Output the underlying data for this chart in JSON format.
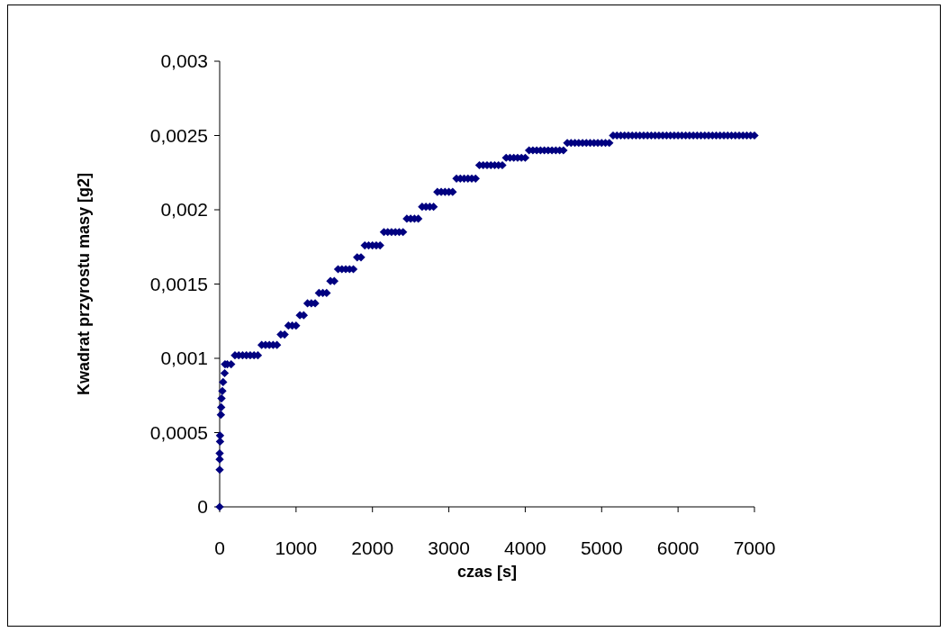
{
  "chart_data": {
    "type": "scatter",
    "xlabel": "czas [s]",
    "ylabel": "Kwadrat przyrostu masy [g2]",
    "marker": "diamond",
    "grid": false,
    "xlim": [
      0,
      7000
    ],
    "xticks": [
      0,
      1000,
      2000,
      3000,
      4000,
      5000,
      6000,
      7000
    ],
    "ylim": [
      0,
      0.003
    ],
    "yticks": [
      {
        "value": 0,
        "label": "0"
      },
      {
        "value": 0.0005,
        "label": "0,0005"
      },
      {
        "value": 0.001,
        "label": "0,001"
      },
      {
        "value": 0.0015,
        "label": "0,0015"
      },
      {
        "value": 0.002,
        "label": "0,002"
      },
      {
        "value": 0.0025,
        "label": "0,0025"
      },
      {
        "value": 0.003,
        "label": "0,003"
      }
    ],
    "series": [
      {
        "color": "#000080",
        "x": [
          0,
          0,
          0,
          0,
          5,
          5,
          16,
          20,
          24,
          35,
          45,
          65,
          70,
          100,
          150,
          200,
          250,
          300,
          350,
          400,
          450,
          500,
          550,
          600,
          650,
          700,
          750,
          800,
          850,
          900,
          950,
          1000,
          1050,
          1100,
          1150,
          1200,
          1250,
          1300,
          1350,
          1400,
          1450,
          1500,
          1550,
          1600,
          1650,
          1700,
          1750,
          1800,
          1850,
          1900,
          1950,
          2000,
          2050,
          2100,
          2150,
          2200,
          2250,
          2300,
          2350,
          2400,
          2450,
          2500,
          2550,
          2600,
          2650,
          2700,
          2750,
          2800,
          2850,
          2900,
          2950,
          3000,
          3050,
          3100,
          3150,
          3200,
          3250,
          3300,
          3350,
          3400,
          3450,
          3500,
          3550,
          3600,
          3650,
          3700,
          3750,
          3800,
          3850,
          3900,
          3950,
          4000,
          4050,
          4100,
          4150,
          4200,
          4250,
          4300,
          4350,
          4400,
          4450,
          4500,
          4550,
          4600,
          4650,
          4700,
          4750,
          4800,
          4850,
          4900,
          4950,
          5000,
          5050,
          5100,
          5150,
          5200,
          5250,
          5300,
          5350,
          5400,
          5450,
          5500,
          5550,
          5600,
          5650,
          5700,
          5750,
          5800,
          5850,
          5900,
          5950,
          6000,
          6050,
          6100,
          6150,
          6200,
          6250,
          6300,
          6350,
          6400,
          6450,
          6500,
          6550,
          6600,
          6650,
          6700,
          6750,
          6800,
          6850,
          6900,
          6950,
          7000
        ],
        "values": [
          0,
          0.00025,
          0.00032,
          0.00036,
          0.00044,
          0.00048,
          0.00062,
          0.00067,
          0.00073,
          0.00078,
          0.00084,
          0.0009,
          0.00096,
          0.00096,
          0.00096,
          0.00102,
          0.00102,
          0.00102,
          0.00102,
          0.00102,
          0.00102,
          0.00102,
          0.00109,
          0.00109,
          0.00109,
          0.00109,
          0.00109,
          0.00116,
          0.00116,
          0.00122,
          0.00122,
          0.00122,
          0.00129,
          0.00129,
          0.00137,
          0.00137,
          0.00137,
          0.00144,
          0.00144,
          0.00144,
          0.00152,
          0.00152,
          0.0016,
          0.0016,
          0.0016,
          0.0016,
          0.0016,
          0.00168,
          0.00168,
          0.00176,
          0.00176,
          0.00176,
          0.00176,
          0.00176,
          0.00185,
          0.00185,
          0.00185,
          0.00185,
          0.00185,
          0.00185,
          0.00194,
          0.00194,
          0.00194,
          0.00194,
          0.00202,
          0.00202,
          0.00202,
          0.00202,
          0.00212,
          0.00212,
          0.00212,
          0.00212,
          0.00212,
          0.00221,
          0.00221,
          0.00221,
          0.00221,
          0.00221,
          0.00221,
          0.0023,
          0.0023,
          0.0023,
          0.0023,
          0.0023,
          0.0023,
          0.0023,
          0.00235,
          0.00235,
          0.00235,
          0.00235,
          0.00235,
          0.00235,
          0.0024,
          0.0024,
          0.0024,
          0.0024,
          0.0024,
          0.0024,
          0.0024,
          0.0024,
          0.0024,
          0.0024,
          0.00245,
          0.00245,
          0.00245,
          0.00245,
          0.00245,
          0.00245,
          0.00245,
          0.00245,
          0.00245,
          0.00245,
          0.00245,
          0.00245,
          0.0025,
          0.0025,
          0.0025,
          0.0025,
          0.0025,
          0.0025,
          0.0025,
          0.0025,
          0.0025,
          0.0025,
          0.0025,
          0.0025,
          0.0025,
          0.0025,
          0.0025,
          0.0025,
          0.0025,
          0.0025,
          0.0025,
          0.0025,
          0.0025,
          0.0025,
          0.0025,
          0.0025,
          0.0025,
          0.0025,
          0.0025,
          0.0025,
          0.0025,
          0.0025,
          0.0025,
          0.0025,
          0.0025,
          0.0025,
          0.0025,
          0.0025,
          0.0025,
          0.0025
        ]
      }
    ]
  }
}
